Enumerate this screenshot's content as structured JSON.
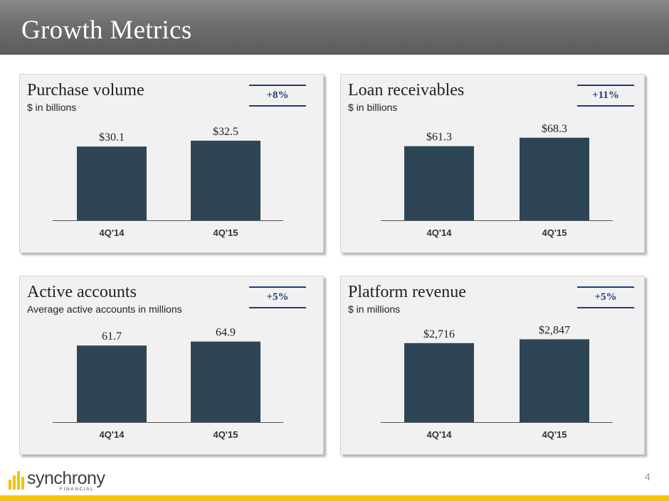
{
  "header": {
    "title": "Growth Metrics"
  },
  "footer": {
    "page_number": "4",
    "logo_name": "synchrony",
    "logo_sub": "FINANCIAL"
  },
  "colors": {
    "bar": "#2e4556",
    "accent": "#1f3a7d",
    "footer_bar": "#f5c400",
    "logo_mark": "#f5c400"
  },
  "chart_data": [
    {
      "type": "bar",
      "title": "Purchase volume",
      "subtitle": "$ in billions",
      "growth_label": "+8%",
      "categories": [
        "4Q'14",
        "4Q'15"
      ],
      "values": [
        30.1,
        32.5
      ],
      "value_labels": [
        "$30.1",
        "$32.5"
      ],
      "ylim": [
        0,
        38
      ]
    },
    {
      "type": "bar",
      "title": "Loan receivables",
      "subtitle": "$ in billions",
      "growth_label": "+11%",
      "categories": [
        "4Q'14",
        "4Q'15"
      ],
      "values": [
        61.3,
        68.3
      ],
      "value_labels": [
        "$61.3",
        "$68.3"
      ],
      "ylim": [
        0,
        77
      ]
    },
    {
      "type": "bar",
      "title": "Active accounts",
      "subtitle": "Average active accounts in millions",
      "growth_label": "+5%",
      "categories": [
        "4Q'14",
        "4Q'15"
      ],
      "values": [
        61.7,
        64.9
      ],
      "value_labels": [
        "61.7",
        "64.9"
      ],
      "ylim": [
        0,
        75
      ]
    },
    {
      "type": "bar",
      "title": "Platform revenue",
      "subtitle": "$ in millions",
      "growth_label": "+5%",
      "categories": [
        "4Q'14",
        "4Q'15"
      ],
      "values": [
        2716,
        2847
      ],
      "value_labels": [
        "$2,716",
        "$2,847"
      ],
      "ylim": [
        0,
        3200
      ]
    }
  ]
}
